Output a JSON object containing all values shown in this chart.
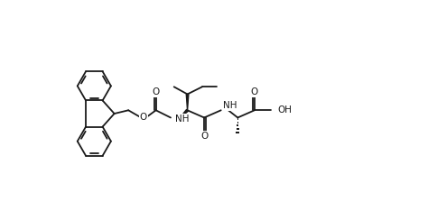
{
  "bg": "#ffffff",
  "lc": "#1a1a1a",
  "lw": 1.3,
  "fs": 7.5,
  "figsize": [
    4.84,
    2.44
  ],
  "dpi": 100,
  "xlim": [
    -0.3,
    9.8
  ],
  "ylim": [
    0.3,
    5.0
  ]
}
